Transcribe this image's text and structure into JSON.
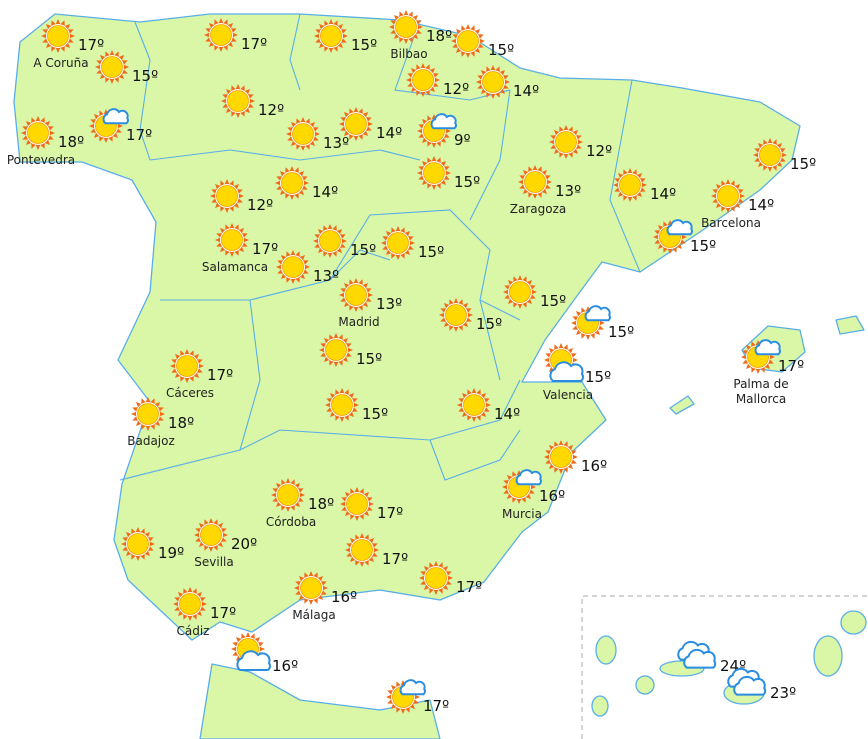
{
  "map": {
    "colors": {
      "land": "#d9f7a6",
      "border": "#5aaee8",
      "sun_rays": "#f06a1a",
      "sun_core": "#ffd800",
      "cloud": "#ffffff",
      "cloud_stroke": "#2a8de0"
    },
    "markers": [
      {
        "icon": "sun",
        "temp": "17º",
        "city": "A Coruña"
      },
      {
        "icon": "sun",
        "temp": "15º"
      },
      {
        "icon": "sun",
        "temp": "18º",
        "city": "Pontevedra"
      },
      {
        "icon": "sun-cloud",
        "temp": "17º"
      },
      {
        "icon": "sun",
        "temp": "17º"
      },
      {
        "icon": "sun",
        "temp": "15º"
      },
      {
        "icon": "sun",
        "temp": "18º",
        "city": "Bilbao"
      },
      {
        "icon": "sun",
        "temp": "15º"
      },
      {
        "icon": "sun",
        "temp": "12º"
      },
      {
        "icon": "sun",
        "temp": "14º"
      },
      {
        "icon": "sun",
        "temp": "12º"
      },
      {
        "icon": "sun",
        "temp": "13º"
      },
      {
        "icon": "sun",
        "temp": "14º"
      },
      {
        "icon": "sun-cloud",
        "temp": "9º"
      },
      {
        "icon": "sun",
        "temp": "12º"
      },
      {
        "icon": "sun",
        "temp": "15º"
      },
      {
        "icon": "sun",
        "temp": "15º"
      },
      {
        "icon": "sun",
        "temp": "12º"
      },
      {
        "icon": "sun",
        "temp": "14º"
      },
      {
        "icon": "sun",
        "temp": "13º",
        "city": "Zaragoza"
      },
      {
        "icon": "sun",
        "temp": "14º"
      },
      {
        "icon": "sun",
        "temp": "14º",
        "city": "Barcelona"
      },
      {
        "icon": "sun-cloud",
        "temp": "15º"
      },
      {
        "icon": "sun",
        "temp": "17º",
        "city": "Salamanca"
      },
      {
        "icon": "sun",
        "temp": "15º"
      },
      {
        "icon": "sun",
        "temp": "15º"
      },
      {
        "icon": "sun",
        "temp": "13º"
      },
      {
        "icon": "sun",
        "temp": "13º",
        "city": "Madrid"
      },
      {
        "icon": "sun",
        "temp": "15º"
      },
      {
        "icon": "sun",
        "temp": "15º"
      },
      {
        "icon": "sun-cloud",
        "temp": "15º"
      },
      {
        "icon": "sun-cloud",
        "temp": "17º",
        "city": "Palma de",
        "city2": "Mallorca"
      },
      {
        "icon": "sun",
        "temp": "15º"
      },
      {
        "icon": "cloud-sun",
        "temp": "15º",
        "city": "Valencia"
      },
      {
        "icon": "sun",
        "temp": "17º",
        "city": "Cáceres"
      },
      {
        "icon": "sun",
        "temp": "18º",
        "city": "Badajoz"
      },
      {
        "icon": "sun",
        "temp": "15º"
      },
      {
        "icon": "sun",
        "temp": "14º"
      },
      {
        "icon": "sun",
        "temp": "16º"
      },
      {
        "icon": "sun-cloud",
        "temp": "16º",
        "city": "Murcia"
      },
      {
        "icon": "sun",
        "temp": "18º",
        "city": "Córdoba"
      },
      {
        "icon": "sun",
        "temp": "17º"
      },
      {
        "icon": "sun",
        "temp": "19º"
      },
      {
        "icon": "sun",
        "temp": "20º",
        "city": "Sevilla"
      },
      {
        "icon": "sun",
        "temp": "17º"
      },
      {
        "icon": "sun",
        "temp": "17º"
      },
      {
        "icon": "sun",
        "temp": "16º",
        "city": "Málaga"
      },
      {
        "icon": "sun",
        "temp": "17º",
        "city": "Cádiz"
      },
      {
        "icon": "cloud-sun",
        "temp": "16º"
      },
      {
        "icon": "sun-cloud",
        "temp": "17º"
      },
      {
        "icon": "cloud",
        "temp": "24º"
      },
      {
        "icon": "cloud",
        "temp": "23º"
      }
    ]
  }
}
